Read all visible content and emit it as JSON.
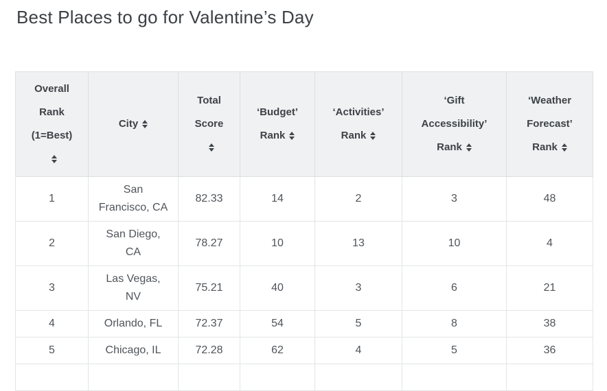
{
  "page": {
    "title": "Best Places to go for Valentine’s Day"
  },
  "colors": {
    "title_text": "#3d4145",
    "header_bg": "#eff1f2",
    "header_text": "#3e4247",
    "body_text": "#4f5459",
    "header_border": "#dde0e2",
    "body_border": "#e2e5e6",
    "sort_icon": "#3f454b",
    "background": "#ffffff"
  },
  "chart_data": {
    "type": "table",
    "title": "Best Places to go for Valentine’s Day",
    "sortable_columns": true,
    "cropped_next_row": true,
    "columns": [
      {
        "id": "overall-rank",
        "label": "Overall Rank (1=Best)",
        "lines": [
          "Overall",
          "Rank",
          "(1=Best)"
        ],
        "icon_inline": false,
        "width": 106
      },
      {
        "id": "city",
        "label": "City",
        "lines": [
          "City"
        ],
        "icon_inline": true,
        "width": 131
      },
      {
        "id": "total-score",
        "label": "Total Score",
        "lines": [
          "Total",
          "Score"
        ],
        "icon_inline": false,
        "width": 90
      },
      {
        "id": "budget-rank",
        "label": "‘Budget’ Rank",
        "lines": [
          "‘Budget’",
          "Rank"
        ],
        "icon_inline": true,
        "width": 109
      },
      {
        "id": "activities-rank",
        "label": "‘Activities’ Rank",
        "lines": [
          "‘Activities’",
          "Rank"
        ],
        "icon_inline": true,
        "width": 127
      },
      {
        "id": "gift-accessibility-rank",
        "label": "‘Gift Accessibility’ Rank",
        "lines": [
          "‘Gift",
          "Accessibility’",
          "Rank"
        ],
        "icon_inline": true,
        "width": 152
      },
      {
        "id": "weather-forecast-rank",
        "label": "‘Weather Forecast’ Rank",
        "lines": [
          "‘Weather",
          "Forecast’",
          "Rank"
        ],
        "icon_inline": true,
        "width": 126
      }
    ],
    "rows": [
      [
        1,
        "San Francisco, CA",
        82.33,
        14,
        2,
        3,
        48
      ],
      [
        2,
        "San Diego, CA",
        78.27,
        10,
        13,
        10,
        4
      ],
      [
        3,
        "Las Vegas, NV",
        75.21,
        40,
        3,
        6,
        21
      ],
      [
        4,
        "Orlando, FL",
        72.37,
        54,
        5,
        8,
        38
      ],
      [
        5,
        "Chicago, IL",
        72.28,
        62,
        4,
        5,
        36
      ]
    ]
  }
}
